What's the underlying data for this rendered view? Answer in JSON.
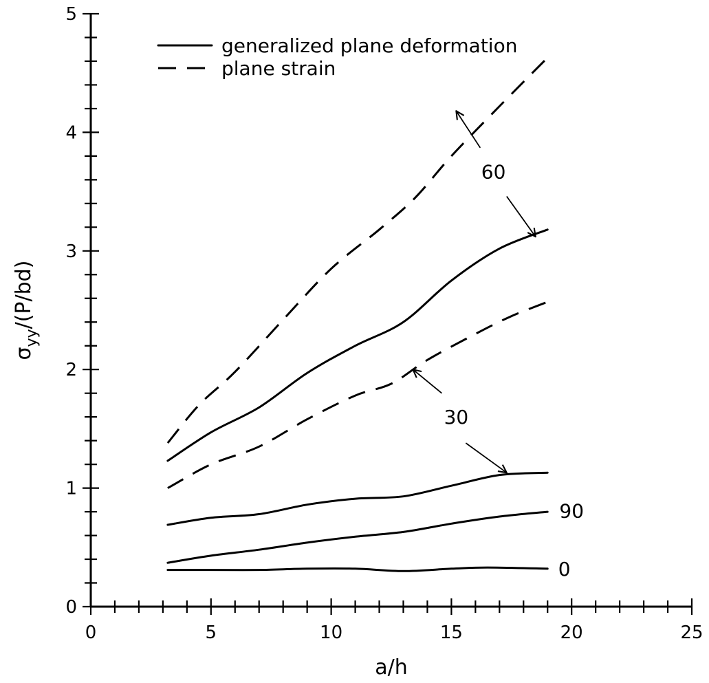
{
  "chart_data": {
    "type": "line",
    "xlabel": "a/h",
    "ylabel_main": "σ",
    "ylabel_sub": "yy",
    "ylabel_rest": "/(P/bd)",
    "xlim": [
      0,
      25
    ],
    "ylim": [
      0,
      5
    ],
    "x_ticks": [
      0,
      5,
      10,
      15,
      20,
      25
    ],
    "y_ticks": [
      0,
      1,
      2,
      3,
      4,
      5
    ],
    "x_tick_labels": [
      "0",
      "5",
      "10",
      "15",
      "20",
      "25"
    ],
    "y_tick_labels": [
      "0",
      "1",
      "2",
      "3",
      "4",
      "5"
    ],
    "x_minor_step": 1,
    "y_minor_step": 0.2,
    "grid": false,
    "legend": {
      "placement": "top-left",
      "entries": [
        {
          "label": "generalized plane deformation",
          "style": "solid"
        },
        {
          "label": "plane strain",
          "style": "dashed"
        }
      ]
    },
    "series": [
      {
        "group": "60",
        "style": "dashed",
        "x": [
          3.2,
          4.5,
          6,
          8,
          10,
          12,
          13.5,
          15,
          17,
          19
        ],
        "y": [
          1.38,
          1.7,
          1.98,
          2.42,
          2.85,
          3.18,
          3.45,
          3.8,
          4.22,
          4.63
        ]
      },
      {
        "group": "60",
        "style": "solid",
        "x": [
          3.2,
          5,
          7,
          9,
          11,
          13,
          15,
          17,
          19
        ],
        "y": [
          1.23,
          1.47,
          1.68,
          1.97,
          2.2,
          2.4,
          2.75,
          3.02,
          3.18
        ]
      },
      {
        "group": "30",
        "style": "dashed",
        "x": [
          3.2,
          5,
          7,
          9,
          11,
          12.5,
          14,
          16,
          17.5,
          19
        ],
        "y": [
          1.0,
          1.2,
          1.35,
          1.58,
          1.78,
          1.88,
          2.08,
          2.3,
          2.45,
          2.57
        ]
      },
      {
        "group": "30",
        "style": "solid",
        "x": [
          3.2,
          5,
          7,
          9,
          11,
          13,
          15,
          17,
          19
        ],
        "y": [
          0.69,
          0.75,
          0.78,
          0.86,
          0.91,
          0.93,
          1.02,
          1.11,
          1.13
        ]
      },
      {
        "group": "90",
        "style": "solid",
        "x": [
          3.2,
          5,
          7,
          9,
          11,
          13,
          15,
          17,
          19
        ],
        "y": [
          0.37,
          0.43,
          0.48,
          0.54,
          0.59,
          0.63,
          0.7,
          0.76,
          0.8
        ]
      },
      {
        "group": "0",
        "style": "solid",
        "x": [
          3.2,
          5,
          7,
          9,
          11,
          13,
          15,
          16.5,
          19
        ],
        "y": [
          0.31,
          0.31,
          0.31,
          0.32,
          0.32,
          0.3,
          0.32,
          0.33,
          0.32
        ]
      }
    ],
    "annotations": [
      {
        "text": "60",
        "x": 16.75,
        "y": 3.67,
        "arrows": [
          {
            "from": [
              16.2,
              3.87
            ],
            "to": [
              15.2,
              4.18
            ]
          },
          {
            "from": [
              17.3,
              3.46
            ],
            "to": [
              18.5,
              3.12
            ]
          }
        ]
      },
      {
        "text": "30",
        "x": 15.2,
        "y": 1.6,
        "arrows": [
          {
            "from": [
              14.6,
              1.8
            ],
            "to": [
              13.4,
              2.0
            ]
          },
          {
            "from": [
              15.6,
              1.38
            ],
            "to": [
              17.3,
              1.13
            ]
          }
        ]
      },
      {
        "text": "90",
        "x": 20.0,
        "y": 0.81,
        "arrows": []
      },
      {
        "text": "0",
        "x": 19.7,
        "y": 0.32,
        "arrows": []
      }
    ]
  }
}
